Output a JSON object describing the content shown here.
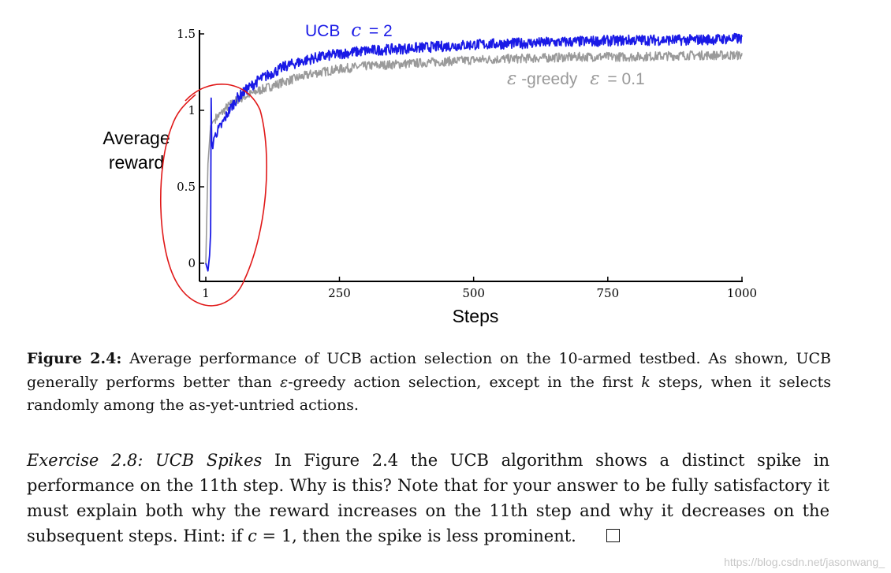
{
  "chart_data": {
    "type": "line",
    "xlabel": "Steps",
    "ylabel": "Average reward",
    "ylabel_lines": [
      "Average",
      "reward"
    ],
    "xlim": [
      1,
      1000
    ],
    "ylim": [
      -0.1,
      1.55
    ],
    "x_ticks": [
      "1",
      "250",
      "500",
      "750",
      "1000"
    ],
    "y_ticks": [
      "0",
      "0.5",
      "1",
      "1.5"
    ],
    "grid": false,
    "series": [
      {
        "name": "UCB c = 2",
        "label_text": "UCB",
        "label_param": "c",
        "label_value": "= 2",
        "color": "#1a1ae6",
        "x": [
          1,
          5,
          8,
          10,
          11,
          12,
          14,
          16,
          20,
          30,
          40,
          50,
          60,
          75,
          100,
          150,
          200,
          250,
          300,
          400,
          500,
          600,
          700,
          800,
          900,
          1000
        ],
        "y": [
          0.0,
          -0.05,
          0.05,
          0.2,
          1.08,
          0.8,
          0.75,
          0.82,
          0.85,
          0.9,
          0.97,
          1.03,
          1.08,
          1.13,
          1.2,
          1.29,
          1.34,
          1.37,
          1.39,
          1.41,
          1.43,
          1.44,
          1.45,
          1.46,
          1.46,
          1.47
        ],
        "noise": 0.035
      },
      {
        "name": "ε-greedy ε = 0.1",
        "label_text": "-greedy",
        "label_param": "ε",
        "label_value": "= 0.1",
        "color": "#9a9a9a",
        "x": [
          1,
          5,
          10,
          15,
          20,
          30,
          40,
          60,
          80,
          100,
          150,
          200,
          250,
          300,
          400,
          500,
          600,
          700,
          800,
          900,
          1000
        ],
        "y": [
          0.0,
          0.65,
          0.9,
          0.93,
          0.95,
          0.98,
          1.02,
          1.07,
          1.1,
          1.13,
          1.19,
          1.24,
          1.27,
          1.29,
          1.31,
          1.33,
          1.34,
          1.35,
          1.35,
          1.36,
          1.36
        ],
        "noise": 0.03
      }
    ],
    "annotation": {
      "shape": "hand-drawn ellipse",
      "color": "#e01818"
    }
  },
  "caption": {
    "figure_label": "Figure 2.4:",
    "text_1": " Average performance of UCB action selection on the 10-armed testbed. As shown, UCB generally performs better than ",
    "epsilon": "ε",
    "text_2": "-greedy action selection, except in the first ",
    "k": "k",
    "text_3": " steps, when it selects randomly among the as-yet-untried actions."
  },
  "exercise": {
    "title": "Exercise 2.8: UCB Spikes",
    "text_1": "   In Figure 2.4 the UCB algorithm shows a distinct spike in performance on the 11th step. Why is this? Note that for your answer to be fully satisfactory it must explain both why the reward increases on the 11th step and why it decreases on the subsequent steps. Hint: if ",
    "c_var": "c",
    "text_2": " = 1, then the spike is less prominent."
  },
  "watermark": "https://blog.csdn.net/jasonwang_"
}
